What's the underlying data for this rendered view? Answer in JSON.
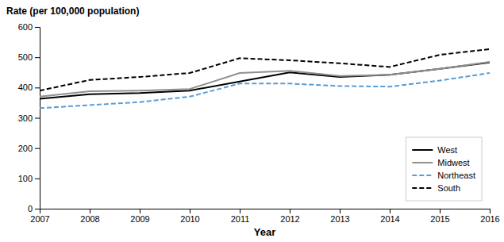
{
  "chart_data": {
    "type": "line",
    "xlabel": "Year",
    "ylabel": "Rate (per 100,000 population)",
    "x": [
      2007,
      2008,
      2009,
      2010,
      2011,
      2012,
      2013,
      2014,
      2015,
      2016
    ],
    "series": [
      {
        "name": "West",
        "color": "#000000",
        "line_style": "solid",
        "values": [
          363,
          378,
          382,
          390,
          420,
          450,
          435,
          442,
          462,
          483
        ]
      },
      {
        "name": "Midwest",
        "color": "#909090",
        "line_style": "solid",
        "values": [
          370,
          388,
          390,
          395,
          448,
          455,
          438,
          442,
          462,
          485
        ]
      },
      {
        "name": "Northeast",
        "color": "#5B9BD5",
        "line_style": "dashed",
        "values": [
          332,
          342,
          352,
          370,
          413,
          413,
          405,
          403,
          423,
          448
        ]
      },
      {
        "name": "South",
        "color": "#000000",
        "line_style": "dashed",
        "values": [
          390,
          425,
          435,
          448,
          497,
          490,
          480,
          468,
          508,
          527
        ]
      }
    ],
    "xlim": [
      2007,
      2016
    ],
    "xticks": [
      2007,
      2008,
      2009,
      2010,
      2011,
      2012,
      2013,
      2014,
      2015,
      2016
    ],
    "ylim": [
      0,
      600
    ],
    "yticks": [
      0,
      100,
      200,
      300,
      400,
      500,
      600
    ],
    "grid": false,
    "legend": "lower right"
  }
}
